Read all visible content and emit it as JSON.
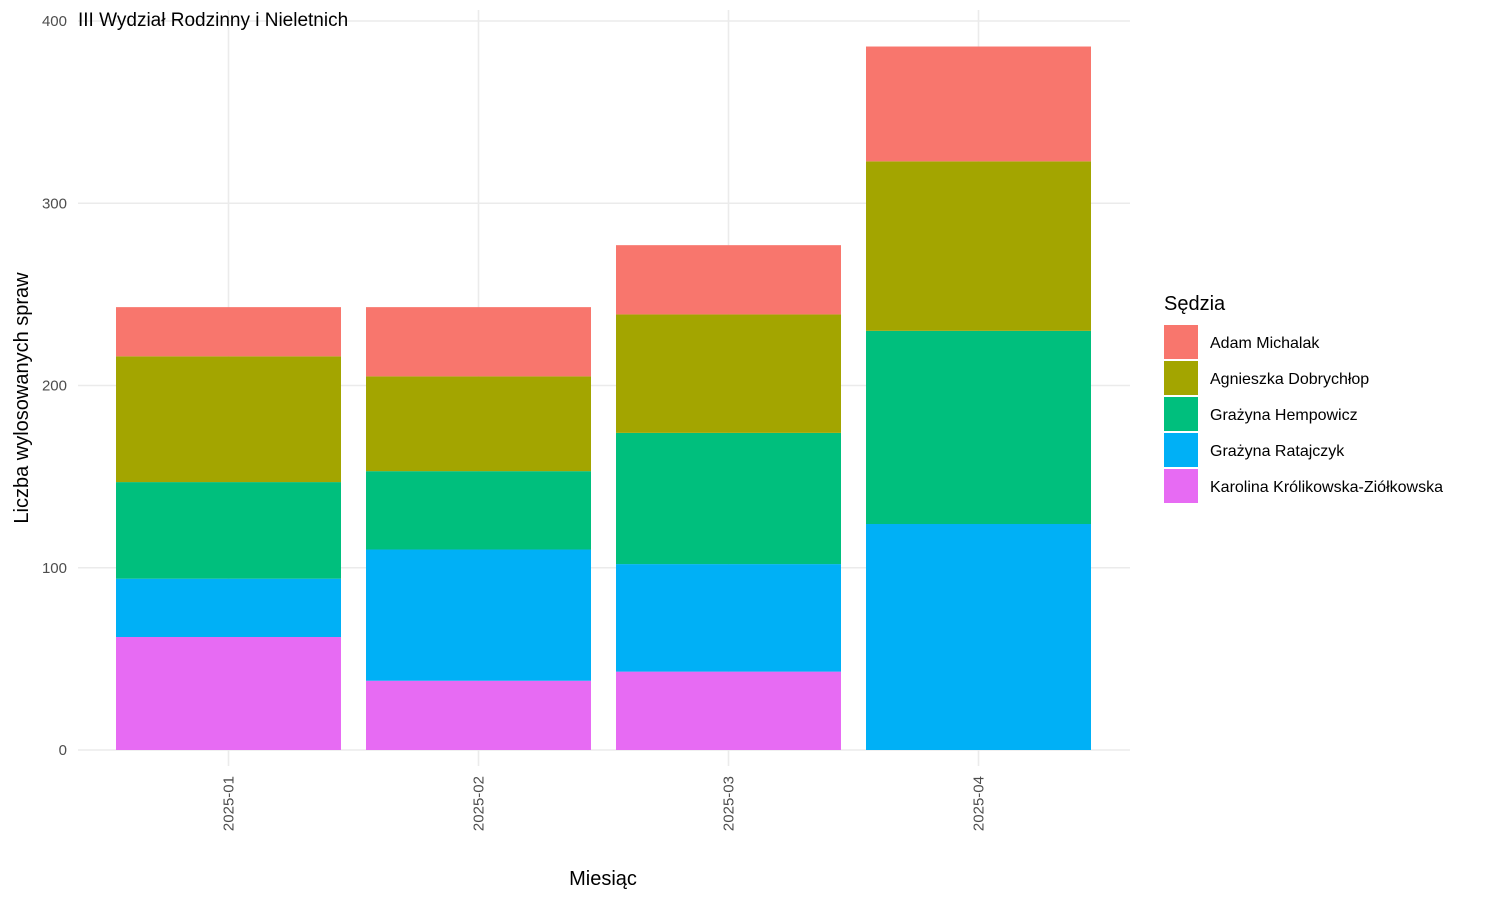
{
  "chart_data": {
    "type": "bar",
    "stacked": true,
    "title": "III Wydział Rodzinny i Nieletnich",
    "xlabel": "Miesiąc",
    "ylabel": "Liczba wylosowanych spraw",
    "ylim": [
      0,
      400
    ],
    "yticks": [
      "0",
      "100",
      "200",
      "300",
      "400"
    ],
    "categories": [
      "2025-01",
      "2025-02",
      "2025-03",
      "2025-04"
    ],
    "grid": true,
    "legend_title": "Sędzia",
    "legend_position": "right",
    "series": [
      {
        "name": "Adam Michalak",
        "color": "#F8766D",
        "values": [
          27,
          38,
          38,
          63
        ]
      },
      {
        "name": "Agnieszka Dobrychłop",
        "color": "#A3A500",
        "values": [
          69,
          52,
          65,
          93
        ]
      },
      {
        "name": "Grażyna Hempowicz",
        "color": "#00BF7D",
        "values": [
          53,
          43,
          72,
          106
        ]
      },
      {
        "name": "Grażyna Ratajczyk",
        "color": "#00B0F6",
        "values": [
          32,
          72,
          59,
          124
        ]
      },
      {
        "name": "Karolina Królikowska-Ziółkowska",
        "color": "#E76BF3",
        "values": [
          62,
          38,
          43,
          0
        ]
      }
    ]
  }
}
